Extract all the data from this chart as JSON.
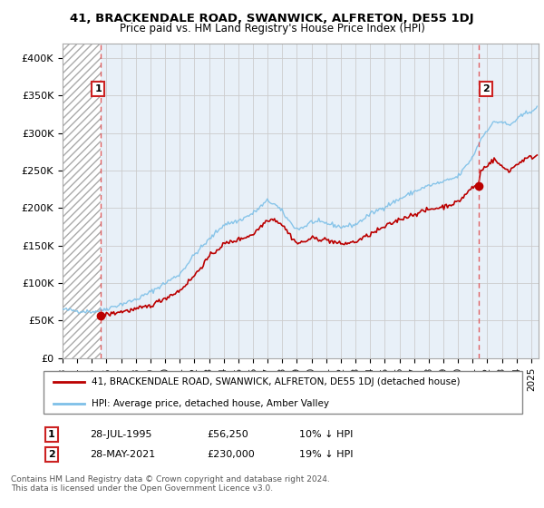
{
  "title": "41, BRACKENDALE ROAD, SWANWICK, ALFRETON, DE55 1DJ",
  "subtitle": "Price paid vs. HM Land Registry's House Price Index (HPI)",
  "legend_line1": "41, BRACKENDALE ROAD, SWANWICK, ALFRETON, DE55 1DJ (detached house)",
  "legend_line2": "HPI: Average price, detached house, Amber Valley",
  "footnote": "Contains HM Land Registry data © Crown copyright and database right 2024.\nThis data is licensed under the Open Government Licence v3.0.",
  "annotation1_label": "1",
  "annotation1_date": "28-JUL-1995",
  "annotation1_price": "£56,250",
  "annotation1_hpi": "10% ↓ HPI",
  "annotation2_label": "2",
  "annotation2_date": "28-MAY-2021",
  "annotation2_price": "£230,000",
  "annotation2_hpi": "19% ↓ HPI",
  "sale1_x": 1995.57,
  "sale1_y": 56250,
  "sale2_x": 2021.41,
  "sale2_y": 230000,
  "hpi_color": "#7dc0e8",
  "price_color": "#bb0000",
  "dashed_color": "#e05050",
  "ylim": [
    0,
    420000
  ],
  "xlim": [
    1993.0,
    2025.5
  ],
  "yticks": [
    0,
    50000,
    100000,
    150000,
    200000,
    250000,
    300000,
    350000,
    400000
  ],
  "ytick_labels": [
    "£0",
    "£50K",
    "£100K",
    "£150K",
    "£200K",
    "£250K",
    "£300K",
    "£350K",
    "£400K"
  ],
  "xtick_years": [
    1993,
    1994,
    1995,
    1996,
    1997,
    1998,
    1999,
    2000,
    2001,
    2002,
    2003,
    2004,
    2005,
    2006,
    2007,
    2008,
    2009,
    2010,
    2011,
    2012,
    2013,
    2014,
    2015,
    2016,
    2017,
    2018,
    2019,
    2020,
    2021,
    2022,
    2023,
    2024,
    2025
  ],
  "hpi_key_points": {
    "1993.0": 65000,
    "1994.0": 63000,
    "1995.0": 62000,
    "1995.5": 63000,
    "1996.0": 66000,
    "1997.0": 72000,
    "1998.0": 78000,
    "1999.0": 88000,
    "2000.0": 100000,
    "2001.0": 112000,
    "2002.0": 138000,
    "2003.0": 158000,
    "2004.0": 178000,
    "2005.0": 183000,
    "2006.0": 193000,
    "2007.0": 210000,
    "2007.5": 205000,
    "2008.0": 195000,
    "2008.5": 182000,
    "2009.0": 172000,
    "2009.5": 175000,
    "2010.0": 182000,
    "2011.0": 180000,
    "2012.0": 175000,
    "2013.0": 178000,
    "2014.0": 192000,
    "2015.0": 202000,
    "2016.0": 212000,
    "2017.0": 222000,
    "2018.0": 230000,
    "2019.0": 235000,
    "2020.0": 242000,
    "2021.0": 268000,
    "2021.5": 290000,
    "2022.0": 305000,
    "2022.5": 315000,
    "2023.0": 315000,
    "2023.5": 310000,
    "2024.0": 318000,
    "2024.5": 325000,
    "2025.0": 330000,
    "2025.4": 333000
  },
  "price_key_points": {
    "1995.57": 56250,
    "1996.0": 58000,
    "1997.0": 62000,
    "1998.0": 65000,
    "1999.0": 70000,
    "2000.0": 80000,
    "2001.0": 90000,
    "2002.0": 110000,
    "2003.0": 135000,
    "2004.0": 152000,
    "2005.0": 158000,
    "2006.0": 165000,
    "2007.0": 185000,
    "2007.5": 185000,
    "2008.0": 178000,
    "2008.5": 165000,
    "2009.0": 153000,
    "2009.5": 155000,
    "2010.0": 160000,
    "2011.0": 158000,
    "2012.0": 152000,
    "2013.0": 155000,
    "2014.0": 165000,
    "2015.0": 175000,
    "2016.0": 185000,
    "2017.0": 192000,
    "2018.0": 198000,
    "2019.0": 202000,
    "2020.0": 208000,
    "2021.0": 228000,
    "2021.41": 230000,
    "2021.5": 248000,
    "2022.0": 258000,
    "2022.5": 265000,
    "2023.0": 255000,
    "2023.5": 250000,
    "2024.0": 258000,
    "2024.5": 265000,
    "2025.0": 268000,
    "2025.4": 270000
  }
}
